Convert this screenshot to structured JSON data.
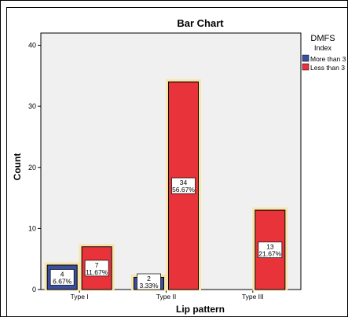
{
  "chart_data": {
    "type": "bar",
    "title": "Bar Chart",
    "xlabel": "Lip pattern",
    "ylabel": "Count",
    "categories": [
      "Type I",
      "Type II",
      "Type III"
    ],
    "ylim": [
      0,
      42
    ],
    "yticks": [
      0,
      10,
      20,
      30,
      40
    ],
    "grid": false,
    "legend": {
      "title_line1": "DMFS",
      "title_line2": "Index",
      "placement": "right"
    },
    "series": [
      {
        "name": "More than 3",
        "color": "#3b4fa0",
        "values": [
          4,
          2,
          0
        ],
        "labels": [
          {
            "count": "4",
            "percent": "6.67%"
          },
          {
            "count": "2",
            "percent": "3.33%"
          },
          null
        ]
      },
      {
        "name": "Less than 3",
        "color": "#e8333b",
        "values": [
          7,
          34,
          13
        ],
        "labels": [
          {
            "count": "7",
            "percent": "11.67%"
          },
          {
            "count": "34",
            "percent": "56.67%"
          },
          {
            "count": "13",
            "percent": "21.67%"
          }
        ]
      }
    ],
    "colors": {
      "plot_background": "#f0f0f0",
      "highlight_border": "#f7e6a8",
      "bar_outline": "#000000"
    }
  }
}
